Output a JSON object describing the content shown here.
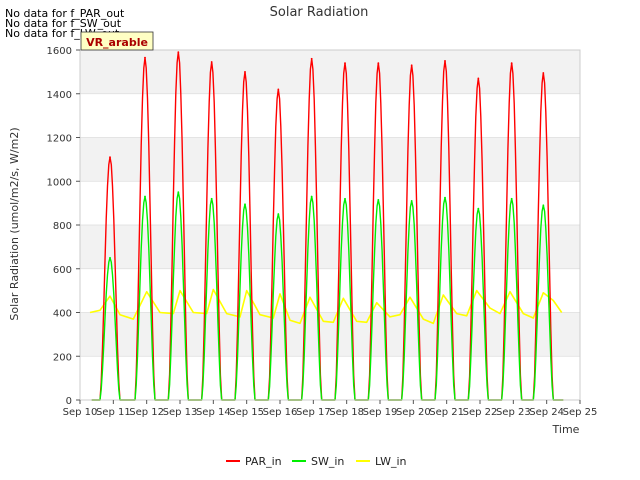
{
  "no_data_messages": [
    "No data for f_PAR_out",
    "No data for f_SW_out",
    "No data for f_LW_out"
  ],
  "site_badge": "VR_arable",
  "chart_data": {
    "type": "line",
    "title": "Solar Radiation",
    "xlabel": "Time",
    "ylabel": "Solar Radiation (umol/m2/s, W/m2)",
    "ylim": [
      0,
      1600
    ],
    "yticks": [
      0,
      200,
      400,
      600,
      800,
      1000,
      1200,
      1400,
      1600
    ],
    "xlim": [
      10,
      25
    ],
    "xticks": [
      10,
      11,
      12,
      13,
      14,
      15,
      16,
      17,
      18,
      19,
      20,
      21,
      22,
      23,
      24,
      25
    ],
    "xtick_labels": [
      "Sep 10",
      "Sep 11",
      "Sep 12",
      "Sep 13",
      "Sep 14",
      "Sep 15",
      "Sep 16",
      "Sep 17",
      "Sep 18",
      "Sep 19",
      "Sep 20",
      "Sep 21",
      "Sep 22",
      "Sep 23",
      "Sep 24",
      "Sep 25"
    ],
    "grid": true,
    "legend_position": "bottom",
    "colors": {
      "PAR_in": "#ff0000",
      "SW_in": "#00ee00",
      "LW_in": "#ffff00"
    },
    "series": [
      {
        "name": "PAR_in",
        "daily_peak_time": [
          10.9,
          11.95,
          12.95,
          13.95,
          14.95,
          15.95,
          16.95,
          17.95,
          18.95,
          19.95,
          20.95,
          21.95,
          22.95,
          23.9
        ],
        "daily_peak_value": [
          1110,
          1565,
          1590,
          1545,
          1500,
          1420,
          1560,
          1540,
          1540,
          1530,
          1550,
          1470,
          1540,
          1495
        ]
      },
      {
        "name": "SW_in",
        "daily_peak_time": [
          10.9,
          11.95,
          12.95,
          13.95,
          14.95,
          15.95,
          16.95,
          17.95,
          18.95,
          19.95,
          20.95,
          21.95,
          22.95,
          23.9
        ],
        "daily_peak_value": [
          650,
          930,
          950,
          920,
          895,
          850,
          930,
          920,
          915,
          910,
          925,
          875,
          920,
          890
        ]
      },
      {
        "name": "LW_in",
        "time": [
          10.3,
          10.6,
          10.9,
          11.2,
          11.6,
          12.0,
          12.4,
          12.8,
          13.0,
          13.4,
          13.8,
          14.0,
          14.4,
          14.8,
          15.0,
          15.4,
          15.8,
          16.0,
          16.3,
          16.6,
          16.9,
          17.3,
          17.6,
          17.9,
          18.3,
          18.6,
          18.9,
          19.3,
          19.6,
          19.9,
          20.3,
          20.6,
          20.9,
          21.3,
          21.6,
          21.9,
          22.3,
          22.6,
          22.9,
          23.3,
          23.6,
          23.9,
          24.2,
          24.45
        ],
        "values": [
          400,
          410,
          475,
          390,
          370,
          495,
          400,
          395,
          500,
          400,
          395,
          505,
          395,
          380,
          500,
          390,
          375,
          485,
          365,
          350,
          470,
          360,
          355,
          465,
          360,
          355,
          445,
          380,
          390,
          470,
          370,
          350,
          480,
          395,
          385,
          500,
          420,
          395,
          495,
          395,
          375,
          490,
          455,
          400
        ]
      }
    ]
  }
}
